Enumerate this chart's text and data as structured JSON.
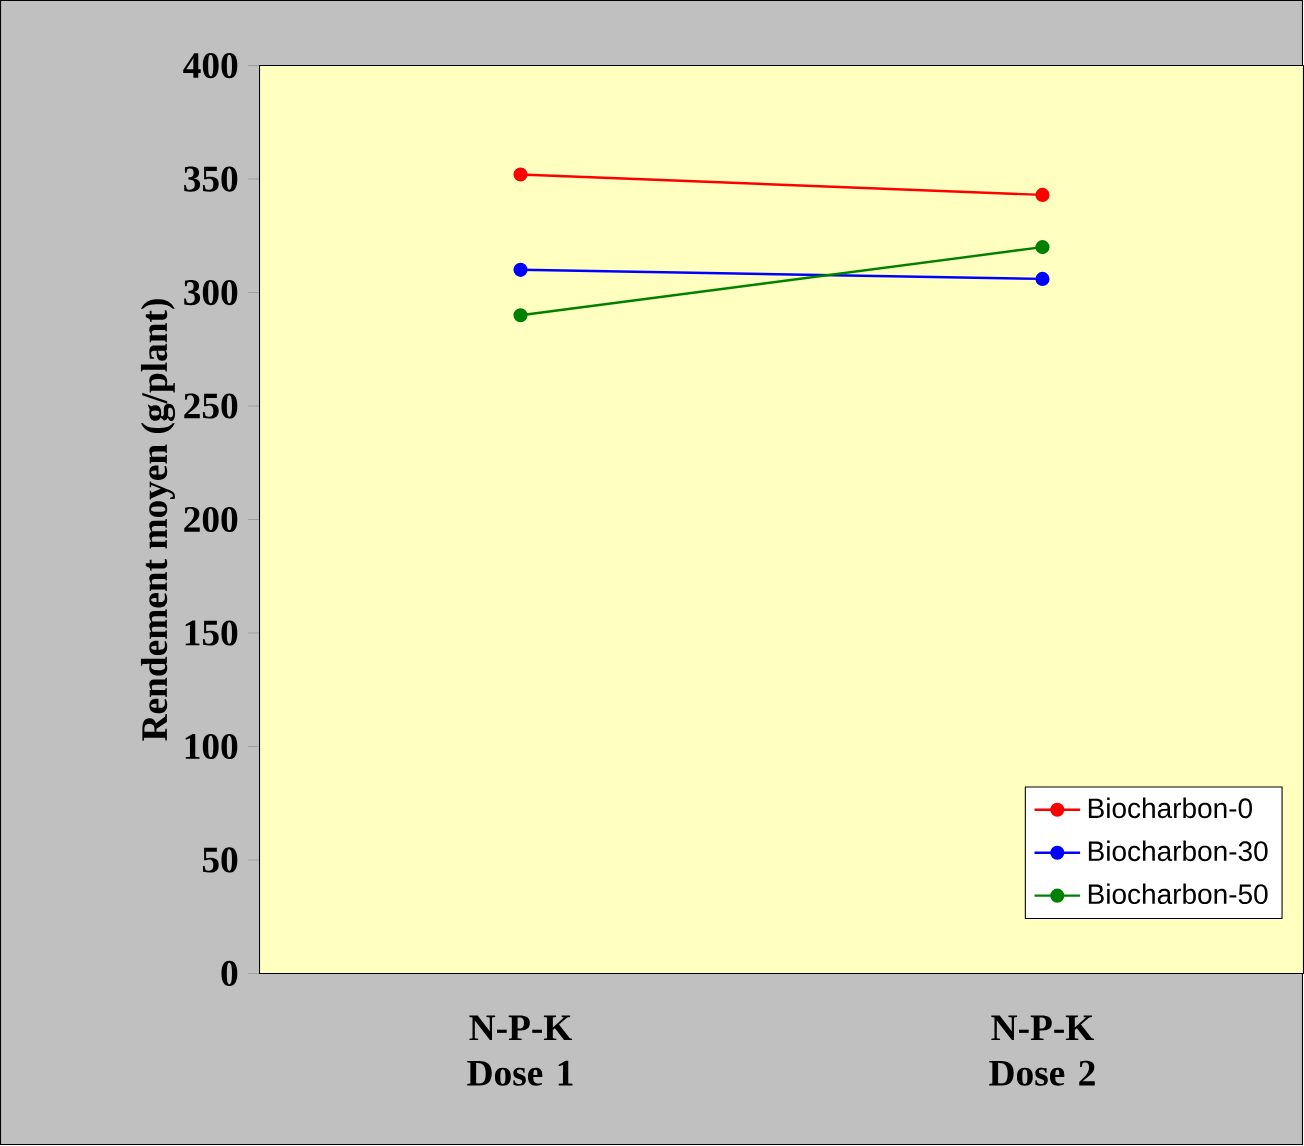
{
  "chart_data": {
    "type": "line",
    "ylabel": "Rendement moyen (g/plant)",
    "categories": [
      "N-P-K Dose 1",
      "N-P-K Dose 2"
    ],
    "series": [
      {
        "name": "Biocharbon-0",
        "color": "#ff0000",
        "values": [
          352,
          343
        ]
      },
      {
        "name": "Biocharbon-30",
        "color": "#0000ff",
        "values": [
          310,
          306
        ]
      },
      {
        "name": "Biocharbon-50",
        "color": "#008000",
        "values": [
          290,
          320
        ]
      }
    ],
    "ylim": [
      0,
      400
    ],
    "yticks": [
      0,
      50,
      100,
      150,
      200,
      250,
      300,
      350,
      400
    ],
    "legend": "bottom right",
    "marker": "circle",
    "line_style": "solid",
    "grid": false
  }
}
